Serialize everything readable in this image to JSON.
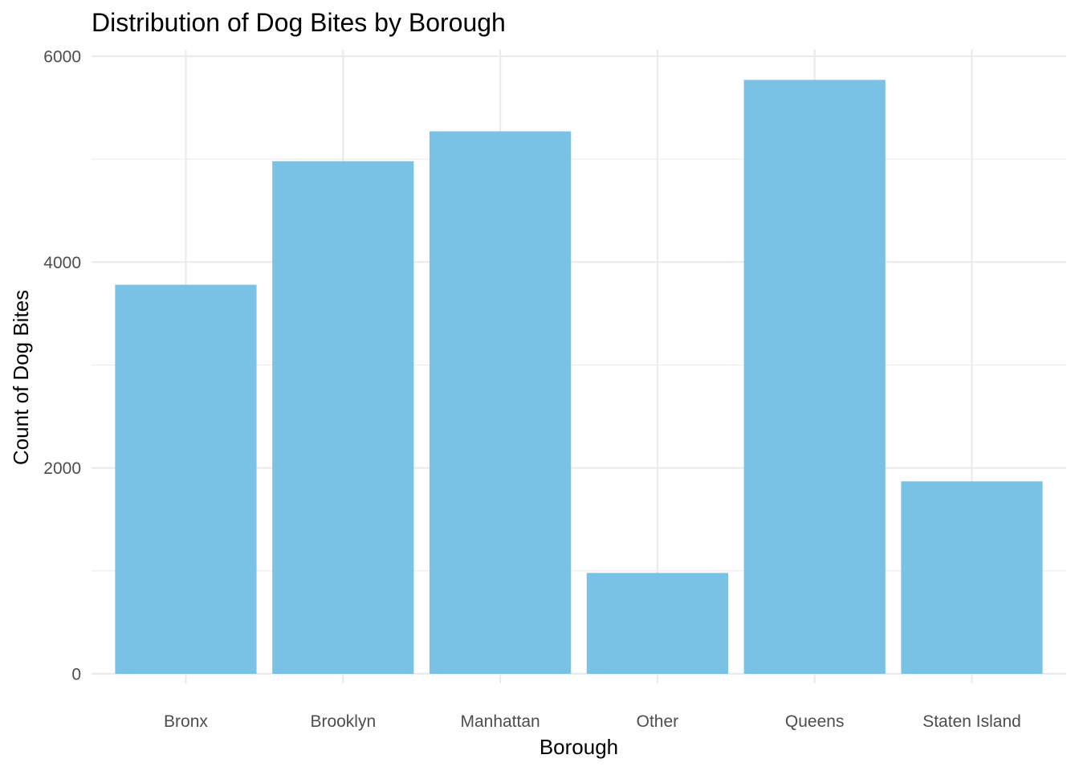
{
  "chart_data": {
    "type": "bar",
    "title": "Distribution of Dog Bites by Borough",
    "xlabel": "Borough",
    "ylabel": "Count of Dog Bites",
    "categories": [
      "Bronx",
      "Brooklyn",
      "Manhattan",
      "Other",
      "Queens",
      "Staten Island"
    ],
    "values": [
      3780,
      4980,
      5270,
      980,
      5770,
      1870
    ],
    "ylim": [
      0,
      6000
    ],
    "yticks": [
      0,
      2000,
      4000,
      6000
    ],
    "grid": true,
    "legend": "none",
    "bar_color": "#79C2E5"
  }
}
